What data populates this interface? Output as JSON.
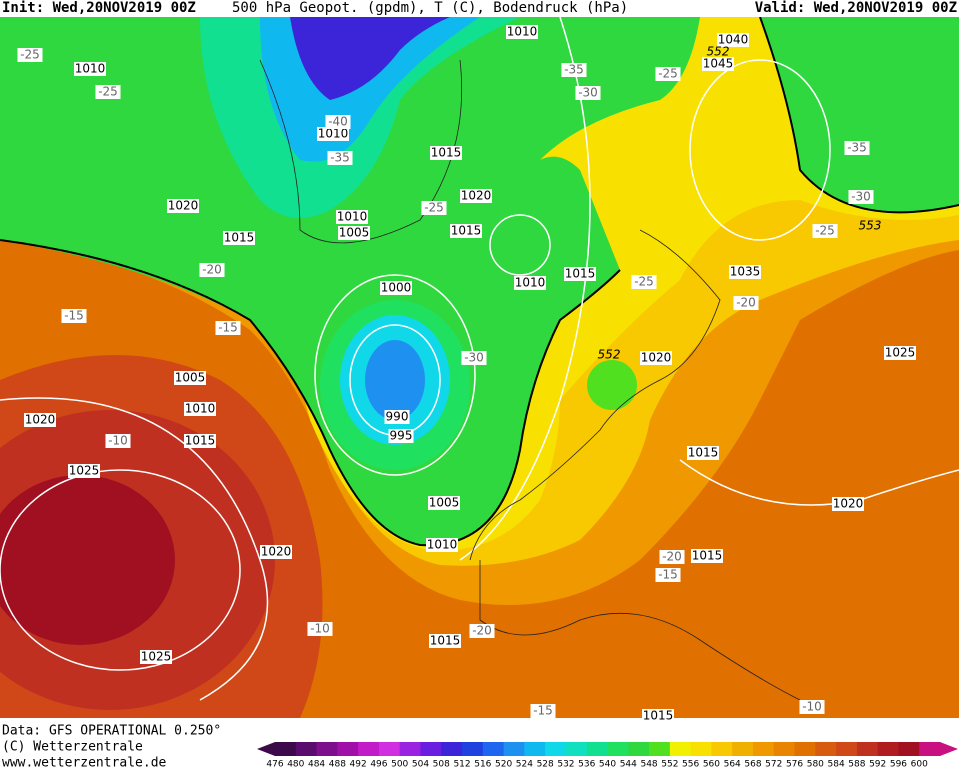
{
  "header": {
    "init": "Init: Wed,20NOV2019 00Z",
    "title": "500 hPa Geopot. (gpdm), T (C), Bodendruck (hPa)",
    "valid": "Valid: Wed,20NOV2019 00Z"
  },
  "isobar_labels": [
    "1010",
    "1010",
    "1040",
    "1045",
    "1010",
    "1015",
    "1020",
    "1020",
    "1015",
    "1010",
    "1005",
    "1015",
    "1010",
    "1015",
    "1000",
    "1035",
    "1020",
    "990",
    "995",
    "1005",
    "1010",
    "1015",
    "1020",
    "1025",
    "1005",
    "1010",
    "1015",
    "1015",
    "1020",
    "1025",
    "1020",
    "1025",
    "1015",
    "1015"
  ],
  "height_labels": [
    "552",
    "552",
    "553"
  ],
  "temperature_labels": [
    "-25",
    "-25",
    "-35",
    "-30",
    "-25",
    "-40",
    "-35",
    "-25",
    "-35",
    "-30",
    "-25",
    "-20",
    "-15",
    "-15",
    "-25",
    "-20",
    "-30",
    "-10",
    "-20",
    "-15",
    "-10",
    "-20",
    "-15",
    "-10"
  ],
  "colorbar": {
    "labels": [
      476,
      480,
      484,
      488,
      492,
      496,
      500,
      504,
      508,
      512,
      516,
      520,
      524,
      528,
      532,
      536,
      540,
      544,
      548,
      552,
      556,
      560,
      564,
      568,
      572,
      576,
      580,
      584,
      588,
      592,
      596,
      600
    ],
    "colors": [
      "#3c0a4a",
      "#5a0c6e",
      "#7d0f8c",
      "#a010a8",
      "#c21cc8",
      "#d02ee0",
      "#9a22e0",
      "#6a1ee0",
      "#3c24d8",
      "#2040e0",
      "#1e66f0",
      "#1e90f0",
      "#10b8f0",
      "#10d8e8",
      "#10e0c0",
      "#10e090",
      "#20e060",
      "#30d840",
      "#50e020",
      "#f0f000",
      "#f8e000",
      "#f8c800",
      "#f0b000",
      "#f09800",
      "#e88400",
      "#e07000",
      "#d85c10",
      "#d04818",
      "#c03020",
      "#b01c20",
      "#a01020",
      "#c81080"
    ]
  },
  "footer": {
    "data_source": "Data: GFS OPERATIONAL 0.250°",
    "copyright": "(C) Wetterzentrale",
    "url": "www.wetterzentrale.de"
  }
}
